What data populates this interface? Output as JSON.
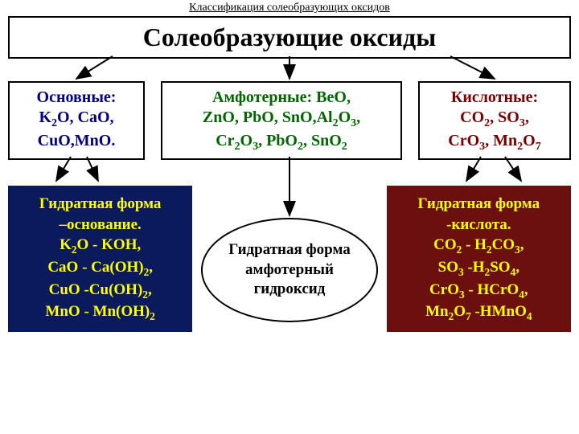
{
  "caption": "Классификация солеобразующих оксидов",
  "title": "Солеобразующие оксиды",
  "categories": {
    "basic": {
      "label": "Основные:",
      "lines": [
        "K₂O, CaO,",
        "CuO,MnO."
      ],
      "color": "#000080"
    },
    "amphoteric": {
      "label": "Амфотерные: BeO,",
      "lines": [
        "ZnO, PbO, SnO,Al₂O₃,",
        "Cr₂O₃, PbO₂, SnO₂"
      ],
      "color": "#006600"
    },
    "acidic": {
      "label": "Кислотные:",
      "lines": [
        "CO₂, SO₃,",
        "CrO₃, Mn₂O₇"
      ],
      "color": "#7a0000"
    }
  },
  "hydrates": {
    "basic": {
      "title": "Гидратная форма",
      "subtitle": "–основание.",
      "lines": [
        "K₂O - KOH,",
        "CaO - Ca(OH)₂,",
        "CuO -Cu(OH)₂,",
        "MnO - Mn(OH)₂"
      ],
      "bg": "#0a1a5c",
      "fg": "#ffff00"
    },
    "amphoteric": {
      "lines": [
        "Гидратная форма",
        "амфотерный",
        "гидроксид"
      ]
    },
    "acidic": {
      "title": "Гидратная форма",
      "subtitle": "-кислота.",
      "lines": [
        "CO₂  - H₂CO₃,",
        "SO₃ -H₂SO₄,",
        "CrO₃ - HCrO₄,",
        "Mn₂O₇  -HMnO₄"
      ],
      "bg": "#6b0f0f",
      "fg": "#ffff00"
    }
  },
  "arrows": {
    "stroke": "#000000",
    "stroke_width": 2
  }
}
